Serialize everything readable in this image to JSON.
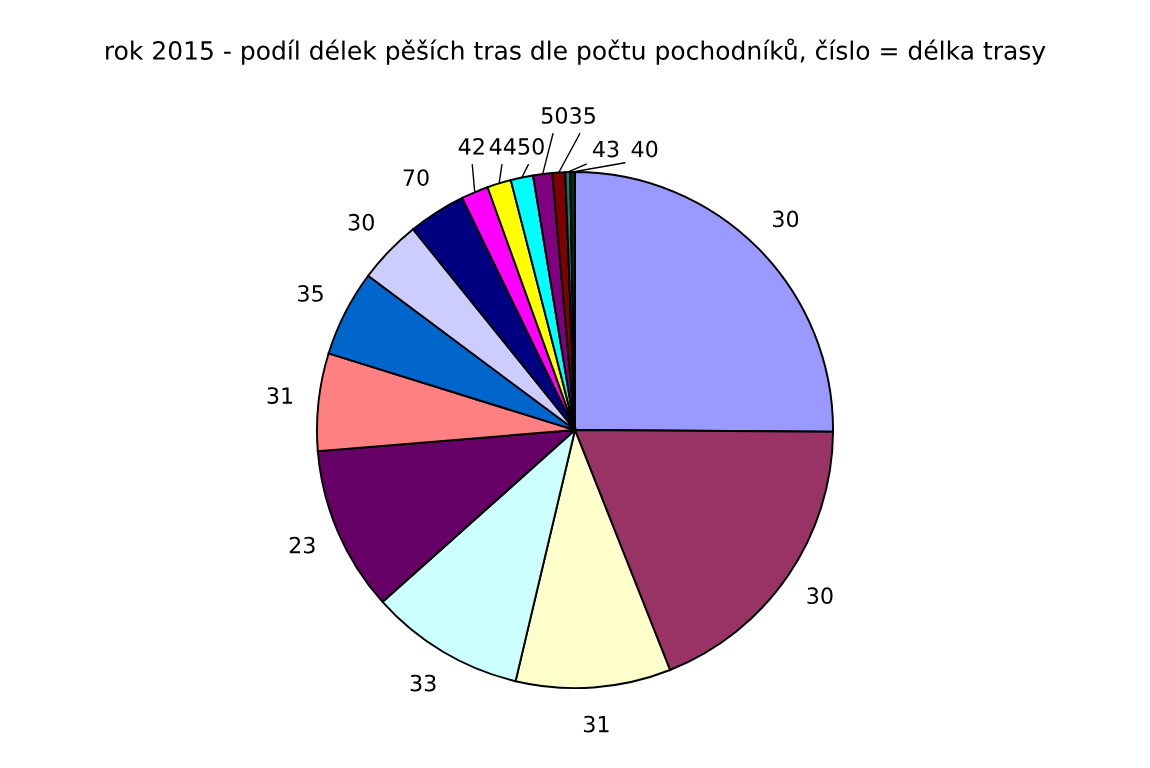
{
  "chart_data": {
    "type": "pie",
    "title": "rok 2015 - podíl délek pěších tras dle počtu pochodníků, číslo = délka trasy",
    "categories": [
      "30",
      "30",
      "31",
      "33",
      "23",
      "31",
      "35",
      "30",
      "70",
      "42",
      "44",
      "50",
      "50",
      "35",
      "43",
      "40"
    ],
    "values": [
      25.1,
      18.9,
      9.7,
      9.7,
      10.3,
      6.1,
      5.4,
      4.0,
      3.6,
      1.7,
      1.5,
      1.4,
      1.2,
      0.8,
      0.3,
      0.3
    ],
    "colors": [
      "#9999ff",
      "#993366",
      "#ffffcc",
      "#ccffff",
      "#660066",
      "#ff8080",
      "#0066cc",
      "#ccccff",
      "#000080",
      "#ff00ff",
      "#ffff00",
      "#00ffff",
      "#800080",
      "#800000",
      "#008080",
      "#003300"
    ],
    "legend": false
  }
}
